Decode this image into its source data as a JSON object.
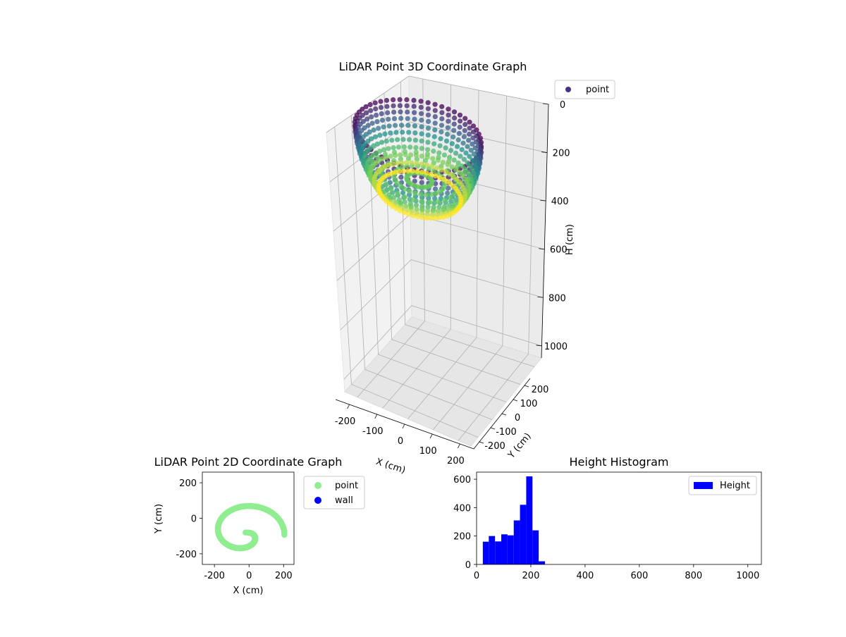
{
  "chart_data": [
    {
      "type": "scatter3d",
      "title": "LiDAR Point 3D Coordinate Graph",
      "xlabel": "X (cm)",
      "ylabel": "Y (cm)",
      "zlabel": "H (cm)",
      "xlim": [
        -250,
        250
      ],
      "ylim": [
        -250,
        250
      ],
      "zlim": [
        0,
        1050
      ],
      "z_inverted": true,
      "x_ticks": [
        -200,
        -100,
        0,
        100,
        200
      ],
      "y_ticks": [
        -200,
        -100,
        0,
        100,
        200
      ],
      "z_ticks": [
        0,
        200,
        400,
        600,
        800,
        1000
      ],
      "colormap": "viridis",
      "legend": {
        "placement": "upper-right-outside",
        "entries": [
          "point"
        ]
      },
      "shape": {
        "center_x": -20,
        "center_y": -80,
        "radius_x": 230,
        "radius_y": 175,
        "height_min": 20,
        "height_max": 260
      }
    },
    {
      "type": "scatter",
      "title": "LiDAR Point 2D Coordinate Graph",
      "xlabel": "X (cm)",
      "ylabel": "Y (cm)",
      "xlim": [
        -270,
        260
      ],
      "ylim": [
        -260,
        260
      ],
      "x_ticks": [
        -200,
        0,
        200
      ],
      "y_ticks": [
        -200,
        0,
        200
      ],
      "series": [
        {
          "name": "point",
          "color": "#90ee90"
        },
        {
          "name": "wall",
          "color": "#0000ff"
        }
      ],
      "legend": {
        "placement": "right-outside"
      }
    },
    {
      "type": "bar",
      "title": "Height Histogram",
      "xlabel": "",
      "ylabel": "",
      "xlim": [
        0,
        1050
      ],
      "ylim": [
        0,
        650
      ],
      "x_ticks": [
        0,
        200,
        400,
        600,
        800,
        1000
      ],
      "y_ticks": [
        0,
        200,
        400,
        600
      ],
      "bin_edges": [
        23,
        45,
        68,
        91,
        114,
        137,
        160,
        183,
        206,
        229,
        252,
        275
      ],
      "values": [
        160,
        200,
        162,
        212,
        205,
        310,
        420,
        620,
        240,
        22,
        0
      ],
      "series": [
        {
          "name": "Height",
          "color": "#0000ff"
        }
      ],
      "legend": {
        "placement": "top-right",
        "entries": [
          "Height"
        ]
      }
    }
  ]
}
